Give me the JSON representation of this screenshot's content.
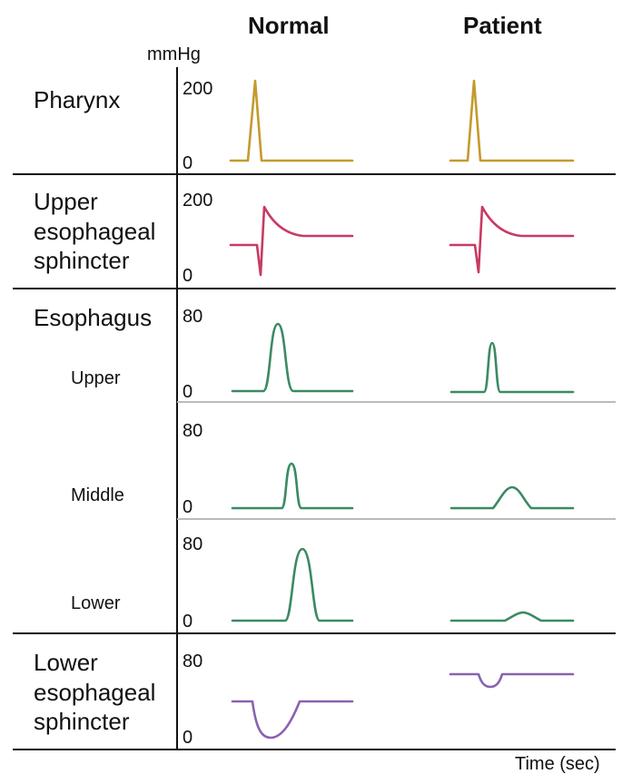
{
  "columns": [
    "Normal",
    "Patient"
  ],
  "unit": "mmHg",
  "time_label": "Time (sec)",
  "rows": {
    "pharynx": {
      "label": "Pharynx",
      "top_tick": "200",
      "bottom_tick": "0"
    },
    "ues": {
      "label_lines": [
        "Upper",
        "esophageal",
        "sphincter"
      ],
      "top_tick": "200",
      "bottom_tick": "0"
    },
    "esophagus": {
      "label": "Esophagus",
      "upper": {
        "label": "Upper",
        "top_tick": "80",
        "bottom_tick": "0"
      },
      "middle": {
        "label": "Middle",
        "top_tick": "80",
        "bottom_tick": "0"
      },
      "lower": {
        "label": "Lower",
        "top_tick": "80",
        "bottom_tick": "0"
      }
    },
    "les": {
      "label_lines": [
        "Lower",
        "esophageal",
        "sphincter"
      ],
      "top_tick": "80",
      "bottom_tick": "0"
    }
  },
  "colors": {
    "pharynx": "#c49a2c",
    "ues": "#c83a62",
    "esophagus": "#3a8a62",
    "les": "#8a62b0",
    "divider": "#111111",
    "sub_divider": "#bbbbbb"
  }
}
